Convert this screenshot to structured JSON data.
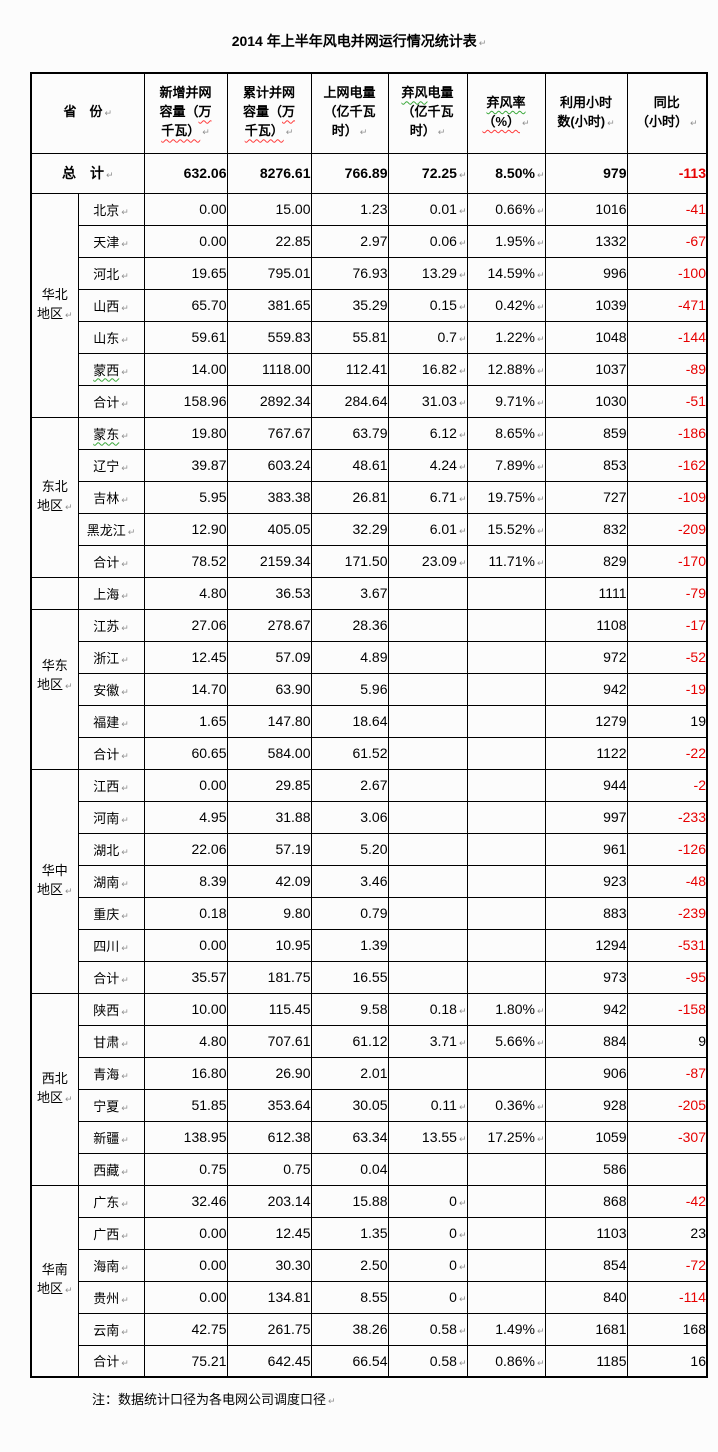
{
  "title": "2014 年上半年风电并网运行情况统计表",
  "note": "注：数据统计口径为各电网公司调度口径",
  "colors": {
    "negative_value": "#e60000",
    "squiggle_red": "#ff3b3b",
    "squiggle_green": "#3aa83a",
    "formatting_mark": "#8f8f8f",
    "border": "#000000"
  },
  "table": {
    "province_header": "省　份",
    "columns": [
      {
        "id": "new-grid-capacity",
        "lines": [
          [
            "新增并网"
          ],
          [
            "容量（",
            {
              "t": "万",
              "u": "red"
            }
          ],
          [
            {
              "t": "千瓦）",
              "u": "red"
            }
          ]
        ]
      },
      {
        "id": "cumulative-grid-capacity",
        "lines": [
          [
            "累计并网"
          ],
          [
            "容量（",
            {
              "t": "万",
              "u": "red"
            }
          ],
          [
            {
              "t": "千瓦）",
              "u": "red"
            }
          ]
        ]
      },
      {
        "id": "on-grid-energy",
        "lines": [
          [
            "上网电量"
          ],
          [
            "（亿千瓦"
          ],
          [
            "时）"
          ]
        ]
      },
      {
        "id": "curtailed-energy",
        "lines": [
          [
            {
              "t": "弃风",
              "u": "green"
            },
            "电量"
          ],
          [
            "（亿千瓦"
          ],
          [
            "时）"
          ]
        ]
      },
      {
        "id": "curtailment-rate",
        "lines": [
          [
            {
              "t": "弃风率",
              "u": "green"
            }
          ],
          [
            {
              "t": "（%）",
              "u": "red"
            }
          ]
        ]
      },
      {
        "id": "utilization-hours",
        "lines": [
          [
            "利用小时"
          ],
          [
            "数(小时)"
          ]
        ]
      },
      {
        "id": "yoy-hours",
        "lines": [
          [
            "同比"
          ],
          [
            "（小时）"
          ]
        ]
      }
    ],
    "total_row": {
      "label": "总　计",
      "values": [
        "632.06",
        "8276.61",
        "766.89",
        "72.25",
        "8.50%",
        "979"
      ],
      "yoy": "-113"
    },
    "sections": [
      {
        "id": "north-china",
        "region_lines": [
          "华北",
          "地区"
        ],
        "label_position": "center",
        "rows": [
          {
            "province": "北京",
            "values": [
              "0.00",
              "15.00",
              "1.23",
              "0.01",
              "0.66%",
              "1016"
            ],
            "yoy": "-41"
          },
          {
            "province": "天津",
            "values": [
              "0.00",
              "22.85",
              "2.97",
              "0.06",
              "1.95%",
              "1332"
            ],
            "yoy": "-67"
          },
          {
            "province": "河北",
            "values": [
              "19.65",
              "795.01",
              "76.93",
              "13.29",
              "14.59%",
              "996"
            ],
            "yoy": "-100"
          },
          {
            "province": "山西",
            "values": [
              "65.70",
              "381.65",
              "35.29",
              "0.15",
              "0.42%",
              "1039"
            ],
            "yoy": "-471"
          },
          {
            "province": "山东",
            "values": [
              "59.61",
              "559.83",
              "55.81",
              "0.7",
              "1.22%",
              "1048"
            ],
            "yoy": "-144"
          },
          {
            "province": "蒙西",
            "squiggle": "green",
            "values": [
              "14.00",
              "1118.00",
              "112.41",
              "16.82",
              "12.88%",
              "1037"
            ],
            "yoy": "-89"
          },
          {
            "province": "合计",
            "values": [
              "158.96",
              "2892.34",
              "284.64",
              "31.03",
              "9.71%",
              "1030"
            ],
            "yoy": "-51"
          }
        ]
      },
      {
        "id": "northeast",
        "region_lines": [
          "东北",
          "地区"
        ],
        "label_position": "center",
        "rows": [
          {
            "province": "蒙东",
            "squiggle": "green",
            "values": [
              "19.80",
              "767.67",
              "63.79",
              "6.12",
              "8.65%",
              "859"
            ],
            "yoy": "-186"
          },
          {
            "province": "辽宁",
            "values": [
              "39.87",
              "603.24",
              "48.61",
              "4.24",
              "7.89%",
              "853"
            ],
            "yoy": "-162"
          },
          {
            "province": "吉林",
            "values": [
              "5.95",
              "383.38",
              "26.81",
              "6.71",
              "19.75%",
              "727"
            ],
            "yoy": "-109"
          },
          {
            "province": "黑龙江",
            "values": [
              "12.90",
              "405.05",
              "32.29",
              "6.01",
              "15.52%",
              "832"
            ],
            "yoy": "-209"
          },
          {
            "province": "合计",
            "values": [
              "78.52",
              "2159.34",
              "171.50",
              "23.09",
              "11.71%",
              "829"
            ],
            "yoy": "-170"
          }
        ]
      },
      {
        "id": "east-china",
        "region_lines": [
          "华东",
          "地区"
        ],
        "label_position": "top",
        "rows": [
          {
            "province": "上海",
            "values": [
              "4.80",
              "36.53",
              "3.67",
              "",
              "",
              "1111"
            ],
            "yoy": "-79"
          },
          {
            "province": "江苏",
            "values": [
              "27.06",
              "278.67",
              "28.36",
              "",
              "",
              "1108"
            ],
            "yoy": "-17"
          },
          {
            "province": "浙江",
            "values": [
              "12.45",
              "57.09",
              "4.89",
              "",
              "",
              "972"
            ],
            "yoy": "-52"
          },
          {
            "province": "安徽",
            "values": [
              "14.70",
              "63.90",
              "5.96",
              "",
              "",
              "942"
            ],
            "yoy": "-19"
          },
          {
            "province": "福建",
            "values": [
              "1.65",
              "147.80",
              "18.64",
              "",
              "",
              "1279"
            ],
            "yoy": "19"
          },
          {
            "province": "合计",
            "values": [
              "60.65",
              "584.00",
              "61.52",
              "",
              "",
              "1122"
            ],
            "yoy": "-22"
          }
        ]
      },
      {
        "id": "central-china",
        "region_lines": [
          "华中",
          "地区"
        ],
        "label_position": "center",
        "rows": [
          {
            "province": "江西",
            "values": [
              "0.00",
              "29.85",
              "2.67",
              "",
              "",
              "944"
            ],
            "yoy": "-2"
          },
          {
            "province": "河南",
            "values": [
              "4.95",
              "31.88",
              "3.06",
              "",
              "",
              "997"
            ],
            "yoy": "-233"
          },
          {
            "province": "湖北",
            "values": [
              "22.06",
              "57.19",
              "5.20",
              "",
              "",
              "961"
            ],
            "yoy": "-126"
          },
          {
            "province": "湖南",
            "values": [
              "8.39",
              "42.09",
              "3.46",
              "",
              "",
              "923"
            ],
            "yoy": "-48"
          },
          {
            "province": "重庆",
            "values": [
              "0.18",
              "9.80",
              "0.79",
              "",
              "",
              "883"
            ],
            "yoy": "-239"
          },
          {
            "province": "四川",
            "values": [
              "0.00",
              "10.95",
              "1.39",
              "",
              "",
              "1294"
            ],
            "yoy": "-531"
          },
          {
            "province": "合计",
            "values": [
              "35.57",
              "181.75",
              "16.55",
              "",
              "",
              "973"
            ],
            "yoy": "-95"
          }
        ]
      },
      {
        "id": "northwest",
        "region_lines": [
          "西北",
          "地区"
        ],
        "label_position": "center",
        "rows": [
          {
            "province": "陕西",
            "values": [
              "10.00",
              "115.45",
              "9.58",
              "0.18",
              "1.80%",
              "942"
            ],
            "yoy": "-158"
          },
          {
            "province": "甘肃",
            "values": [
              "4.80",
              "707.61",
              "61.12",
              "3.71",
              "5.66%",
              "884"
            ],
            "yoy": "9"
          },
          {
            "province": "青海",
            "values": [
              "16.80",
              "26.90",
              "2.01",
              "",
              "",
              "906"
            ],
            "yoy": "-87"
          },
          {
            "province": "宁夏",
            "values": [
              "51.85",
              "353.64",
              "30.05",
              "0.11",
              "0.36%",
              "928"
            ],
            "yoy": "-205"
          },
          {
            "province": "新疆",
            "values": [
              "138.95",
              "612.38",
              "63.34",
              "13.55",
              "17.25%",
              "1059"
            ],
            "yoy": "-307"
          },
          {
            "province": "西藏",
            "values": [
              "0.75",
              "0.75",
              "0.04",
              "",
              "",
              "586"
            ],
            "yoy": ""
          }
        ]
      },
      {
        "id": "south-china",
        "region_lines": [
          "华南",
          "地区"
        ],
        "label_position": "center",
        "rows": [
          {
            "province": "广东",
            "values": [
              "32.46",
              "203.14",
              "15.88",
              "0",
              "",
              "868"
            ],
            "yoy": "-42"
          },
          {
            "province": "广西",
            "values": [
              "0.00",
              "12.45",
              "1.35",
              "0",
              "",
              "1103"
            ],
            "yoy": "23"
          },
          {
            "province": "海南",
            "values": [
              "0.00",
              "30.30",
              "2.50",
              "0",
              "",
              "854"
            ],
            "yoy": "-72"
          },
          {
            "province": "贵州",
            "values": [
              "0.00",
              "134.81",
              "8.55",
              "0",
              "",
              "840"
            ],
            "yoy": "-114"
          },
          {
            "province": "云南",
            "values": [
              "42.75",
              "261.75",
              "38.26",
              "0.58",
              "1.49%",
              "1681"
            ],
            "yoy": "168"
          },
          {
            "province": "合计",
            "values": [
              "75.21",
              "642.45",
              "66.54",
              "0.58",
              "0.86%",
              "1185"
            ],
            "yoy": "16"
          }
        ]
      }
    ]
  }
}
